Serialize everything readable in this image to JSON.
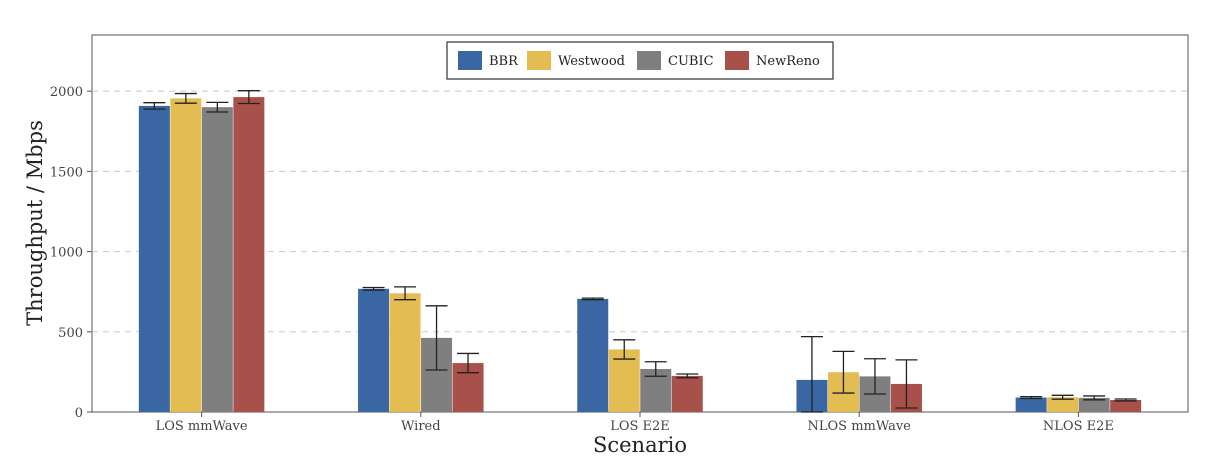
{
  "chart_data": {
    "type": "bar",
    "title": "",
    "xlabel": "Scenario",
    "ylabel": "Throughput / Mbps",
    "ylim": [
      0,
      2350
    ],
    "yticks": [
      0,
      500,
      1000,
      1500,
      2000
    ],
    "grid": "horizontal-dashed",
    "legend_position": "top-center",
    "categories": [
      "LOS mmWave",
      "Wired",
      "LOS E2E",
      "NLOS mmWave",
      "NLOS E2E"
    ],
    "series": [
      {
        "name": "BBR",
        "color": "#3a67a3",
        "values": [
          1908,
          768,
          705,
          200,
          90
        ],
        "errors": [
          20,
          8,
          5,
          270,
          6
        ]
      },
      {
        "name": "Westwood",
        "color": "#e3bd52",
        "values": [
          1955,
          740,
          390,
          248,
          92
        ],
        "errors": [
          30,
          40,
          60,
          130,
          12
        ]
      },
      {
        "name": "CUBIC",
        "color": "#7f7f7f",
        "values": [
          1900,
          462,
          268,
          222,
          88
        ],
        "errors": [
          30,
          200,
          45,
          110,
          12
        ]
      },
      {
        "name": "NewReno",
        "color": "#a8504a",
        "values": [
          1963,
          305,
          225,
          175,
          75
        ],
        "errors": [
          40,
          60,
          12,
          150,
          6
        ]
      }
    ]
  }
}
